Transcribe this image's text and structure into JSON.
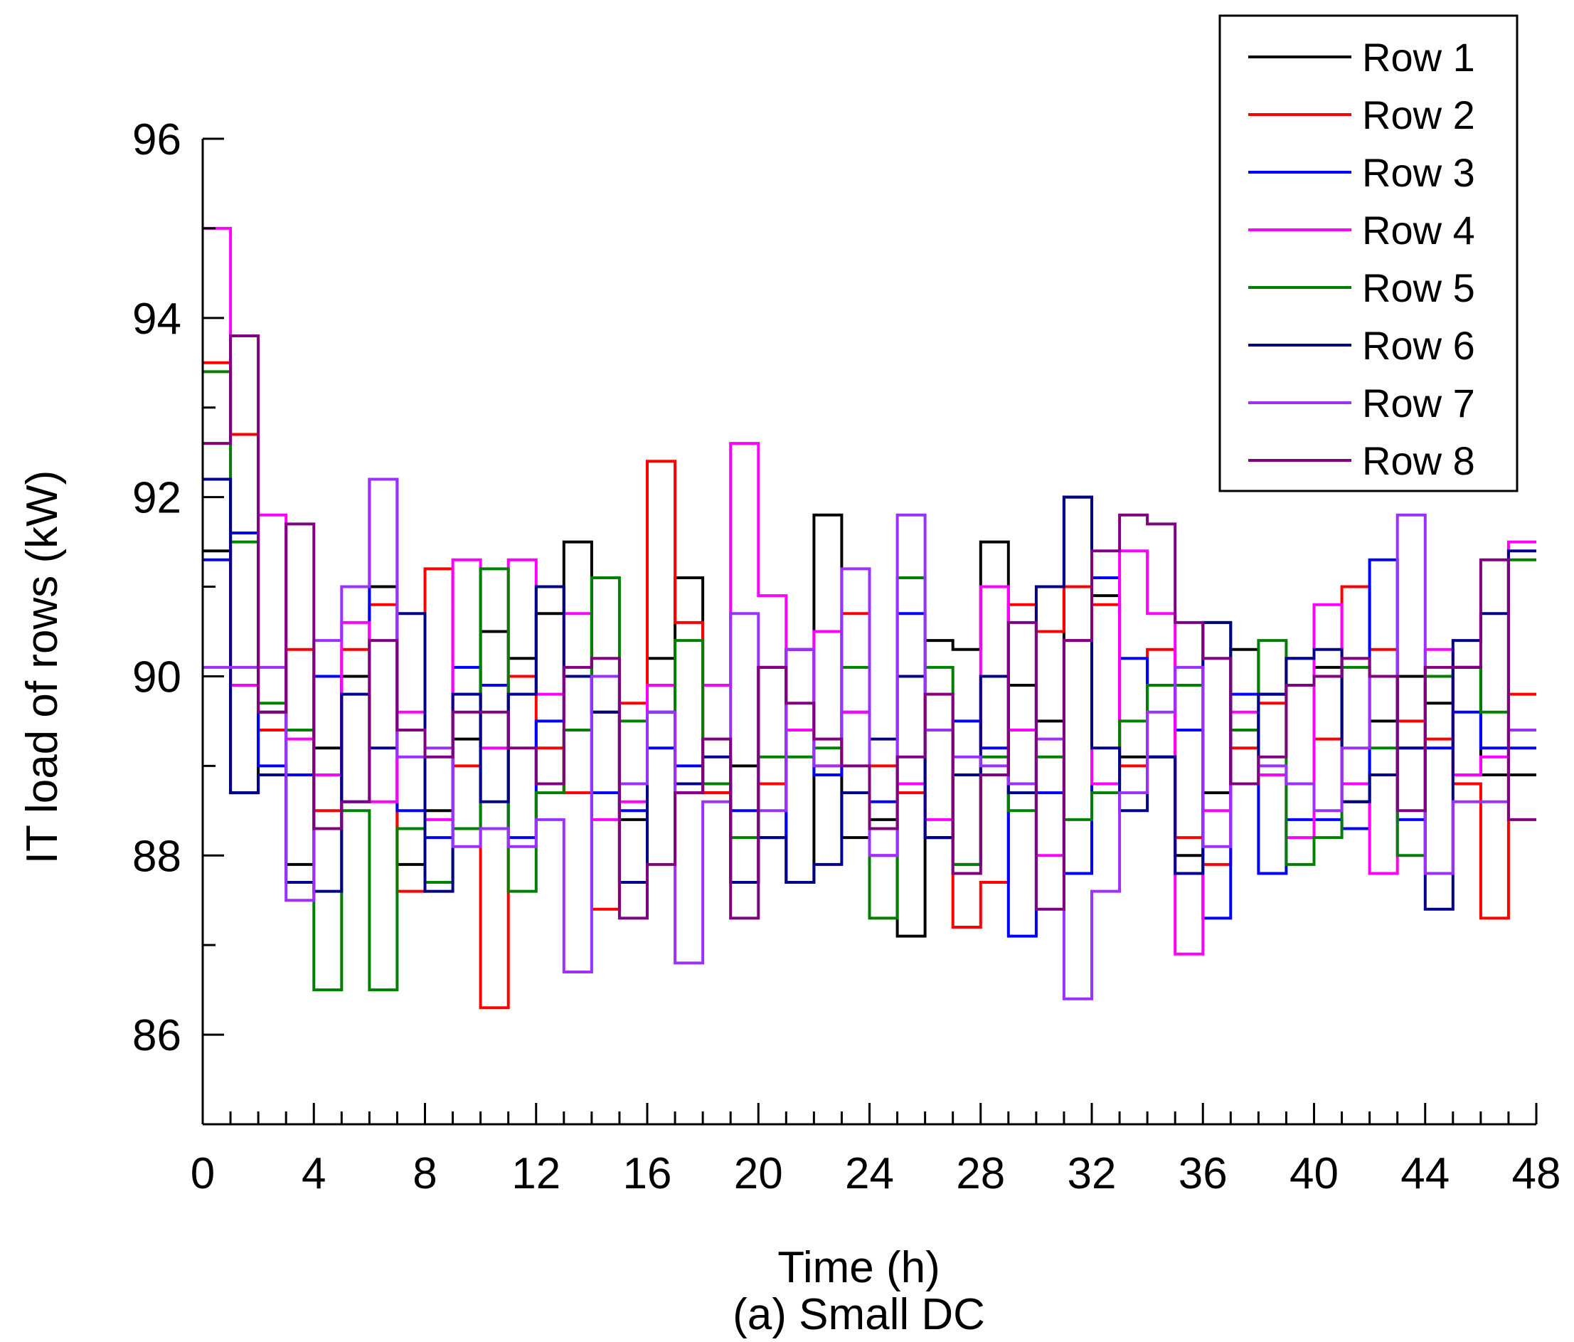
{
  "chart_data": {
    "type": "line",
    "step": true,
    "xlabel": "Time (h)",
    "ylabel": "IT load of rows (kW)",
    "caption": "(a) Small DC",
    "xlim": [
      0,
      48
    ],
    "ylim": [
      85,
      96
    ],
    "xticks": [
      0,
      4,
      8,
      12,
      16,
      20,
      24,
      28,
      32,
      36,
      40,
      44,
      48
    ],
    "yticks": [
      86,
      88,
      90,
      92,
      94,
      96
    ],
    "legend_position": "top-right",
    "x": [
      0,
      1,
      2,
      3,
      4,
      5,
      6,
      7,
      8,
      9,
      10,
      11,
      12,
      13,
      14,
      15,
      16,
      17,
      18,
      19,
      20,
      21,
      22,
      23,
      24,
      25,
      26,
      27,
      28,
      29,
      30,
      31,
      32,
      33,
      34,
      35,
      36,
      37,
      38,
      39,
      40,
      41,
      42,
      43,
      44,
      45,
      46,
      47
    ],
    "series": [
      {
        "name": "Row 1",
        "color": "#000000",
        "values": [
          91.4,
          88.7,
          89.6,
          87.9,
          89.2,
          90.0,
          91.0,
          87.9,
          88.5,
          89.3,
          90.5,
          90.2,
          90.7,
          91.5,
          89.6,
          88.4,
          90.2,
          91.1,
          88.7,
          89.0,
          90.1,
          87.7,
          91.8,
          88.2,
          88.4,
          87.1,
          90.4,
          90.3,
          91.5,
          89.9,
          89.5,
          92.0,
          90.9,
          89.1,
          89.1,
          88.0,
          88.7,
          90.3,
          89.8,
          89.9,
          90.1,
          88.6,
          89.5,
          90.0,
          89.7,
          90.1,
          88.9,
          88.9
        ]
      },
      {
        "name": "Row 2",
        "color": "#ff0000",
        "values": [
          93.5,
          92.7,
          89.4,
          90.3,
          88.5,
          90.3,
          90.8,
          87.6,
          91.2,
          89.0,
          86.3,
          90.0,
          89.2,
          88.7,
          87.4,
          89.7,
          92.4,
          90.6,
          88.7,
          87.7,
          88.8,
          90.3,
          89.0,
          90.7,
          89.0,
          88.7,
          88.2,
          87.2,
          87.7,
          90.8,
          90.5,
          91.0,
          90.8,
          89.0,
          90.3,
          88.2,
          87.9,
          89.2,
          89.7,
          90.2,
          89.3,
          91.0,
          90.3,
          89.5,
          89.3,
          88.8,
          87.3,
          89.8
        ]
      },
      {
        "name": "Row 3",
        "color": "#0000ff",
        "values": [
          91.3,
          91.6,
          89.0,
          88.9,
          90.0,
          88.6,
          92.2,
          88.5,
          88.2,
          90.1,
          89.9,
          88.2,
          89.5,
          90.0,
          88.7,
          88.5,
          89.2,
          89.0,
          88.8,
          88.5,
          88.2,
          90.3,
          88.9,
          89.6,
          88.6,
          90.7,
          88.2,
          89.5,
          89.2,
          87.1,
          88.7,
          87.8,
          91.1,
          90.2,
          89.9,
          89.4,
          87.3,
          89.8,
          87.8,
          88.4,
          88.4,
          88.3,
          91.3,
          88.4,
          89.2,
          89.6,
          89.2,
          89.2
        ]
      },
      {
        "name": "Row 4",
        "color": "#ff00ff",
        "values": [
          95.0,
          89.9,
          91.8,
          89.3,
          88.9,
          90.6,
          88.6,
          89.6,
          88.4,
          91.3,
          89.2,
          91.3,
          89.8,
          90.7,
          88.4,
          88.6,
          89.9,
          88.7,
          89.9,
          92.6,
          90.9,
          89.4,
          90.5,
          89.6,
          88.0,
          88.8,
          88.4,
          87.9,
          91.0,
          89.4,
          88.0,
          90.4,
          88.8,
          91.4,
          90.7,
          86.9,
          88.5,
          89.6,
          88.9,
          88.2,
          90.8,
          88.8,
          87.8,
          89.2,
          90.3,
          88.9,
          89.1,
          91.5
        ]
      },
      {
        "name": "Row 5",
        "color": "#008000",
        "values": [
          93.4,
          91.5,
          89.7,
          89.4,
          86.5,
          88.5,
          86.5,
          88.3,
          87.7,
          88.3,
          91.2,
          87.6,
          88.7,
          89.4,
          91.1,
          89.5,
          89.6,
          90.4,
          88.8,
          88.2,
          89.1,
          89.1,
          89.2,
          90.1,
          87.3,
          91.1,
          90.1,
          87.9,
          89.1,
          88.5,
          89.1,
          88.4,
          88.7,
          89.5,
          89.9,
          89.9,
          90.6,
          89.4,
          90.4,
          87.9,
          88.2,
          90.1,
          89.2,
          88.0,
          90.0,
          90.1,
          89.6,
          91.3
        ]
      },
      {
        "name": "Row 6",
        "color": "#00008b",
        "values": [
          92.2,
          88.7,
          88.9,
          87.7,
          87.6,
          89.8,
          89.2,
          90.7,
          87.6,
          89.8,
          88.6,
          89.8,
          91.0,
          90.0,
          89.6,
          87.7,
          89.6,
          88.8,
          89.1,
          87.7,
          88.2,
          87.7,
          87.9,
          88.7,
          89.3,
          90.0,
          88.2,
          88.9,
          90.0,
          88.7,
          91.0,
          92.0,
          89.2,
          88.5,
          89.1,
          87.8,
          90.6,
          88.8,
          89.8,
          90.2,
          90.3,
          88.6,
          88.9,
          89.2,
          87.4,
          90.4,
          90.7,
          91.4
        ]
      },
      {
        "name": "Row 7",
        "color": "#9b30ff",
        "values": [
          90.1,
          90.1,
          90.1,
          87.5,
          90.4,
          91.0,
          92.2,
          89.1,
          89.2,
          88.1,
          88.3,
          88.1,
          88.4,
          86.7,
          90.0,
          88.8,
          89.6,
          86.8,
          88.6,
          90.7,
          88.5,
          90.3,
          89.0,
          91.2,
          88.0,
          91.8,
          89.4,
          89.1,
          89.0,
          88.8,
          89.3,
          86.4,
          87.6,
          88.7,
          89.6,
          90.1,
          88.1,
          88.8,
          89.0,
          88.8,
          88.5,
          89.2,
          90.0,
          91.8,
          87.8,
          88.6,
          88.6,
          89.4
        ]
      },
      {
        "name": "Row 8",
        "color": "#800080",
        "values": [
          92.6,
          93.8,
          89.6,
          91.7,
          88.3,
          88.6,
          90.4,
          89.4,
          89.1,
          89.6,
          89.6,
          89.2,
          88.8,
          90.1,
          90.2,
          87.3,
          87.9,
          88.7,
          89.3,
          87.3,
          90.1,
          89.7,
          89.3,
          89.0,
          88.3,
          89.1,
          89.8,
          87.8,
          88.9,
          90.6,
          87.4,
          90.4,
          91.4,
          91.8,
          91.7,
          90.6,
          90.2,
          88.8,
          89.1,
          89.9,
          90.0,
          90.2,
          90.0,
          88.5,
          90.1,
          90.1,
          91.3,
          88.4
        ]
      }
    ]
  }
}
